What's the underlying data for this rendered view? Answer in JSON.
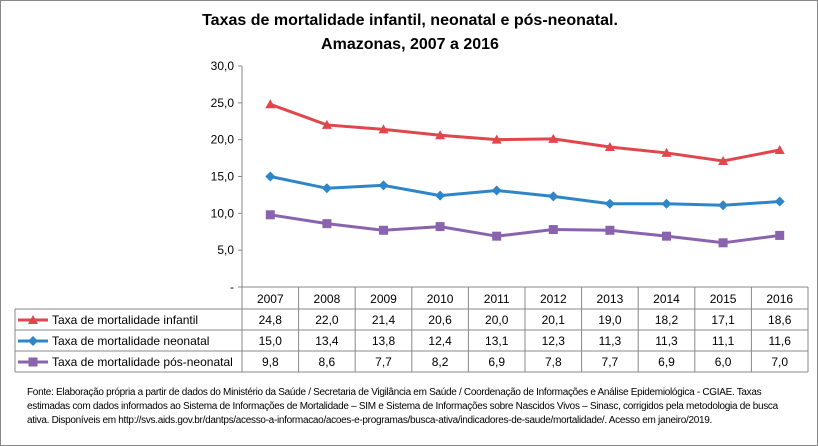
{
  "chart_data": {
    "type": "line",
    "title": [
      "Taxas de mortalidade infantil, neonatal e pós-neonatal.",
      "Amazonas, 2007 a 2016"
    ],
    "categories": [
      "2007",
      "2008",
      "2009",
      "2010",
      "2011",
      "2012",
      "2013",
      "2014",
      "2015",
      "2016"
    ],
    "ylim": [
      0,
      30
    ],
    "yticks": [
      "-",
      "5,0",
      "10,0",
      "15,0",
      "20,0",
      "25,0",
      "30,0"
    ],
    "grid": false,
    "legend": "data-table",
    "series": [
      {
        "name": "Taxa de mortalidade infantil",
        "color": "#E0474C",
        "marker": "triangle",
        "values": [
          24.8,
          22.0,
          21.4,
          20.6,
          20.0,
          20.1,
          19.0,
          18.2,
          17.1,
          18.6
        ],
        "labels": [
          "24,8",
          "22,0",
          "21,4",
          "20,6",
          "20,0",
          "20,1",
          "19,0",
          "18,2",
          "17,1",
          "18,6"
        ]
      },
      {
        "name": "Taxa de mortalidade neonatal",
        "color": "#2E86C8",
        "marker": "diamond",
        "values": [
          15.0,
          13.4,
          13.8,
          12.4,
          13.1,
          12.3,
          11.3,
          11.3,
          11.1,
          11.6
        ],
        "labels": [
          "15,0",
          "13,4",
          "13,8",
          "12,4",
          "13,1",
          "12,3",
          "11,3",
          "11,3",
          "11,1",
          "11,6"
        ]
      },
      {
        "name": "Taxa de mortalidade pós-neonatal",
        "color": "#8A63AE",
        "marker": "square",
        "values": [
          9.8,
          8.6,
          7.7,
          8.2,
          6.9,
          7.8,
          7.7,
          6.9,
          6.0,
          7.0
        ],
        "labels": [
          "9,8",
          "8,6",
          "7,7",
          "8,2",
          "6,9",
          "7,8",
          "7,7",
          "6,9",
          "6,0",
          "7,0"
        ]
      }
    ]
  },
  "note": "Fonte: Elaboração própria a partir de dados do Ministério da Saúde / Secretaria de Vigilância em Saúde / Coordenação de Informações e Análise Epidemiológica - CGIAE. Taxas estimadas com dados informados ao Sistema de Informações de Mortalidade – SIM e Sistema de Informações sobre Nascidos Vivos – Sinasc, corrigidos pela metodologia de busca ativa. Disponíveis em http://svs.aids.gov.br/dantps/acesso-a-informacao/acoes-e-programas/busca-ativa/indicadores-de-saude/mortalidade/. Acesso em janeiro/2019."
}
